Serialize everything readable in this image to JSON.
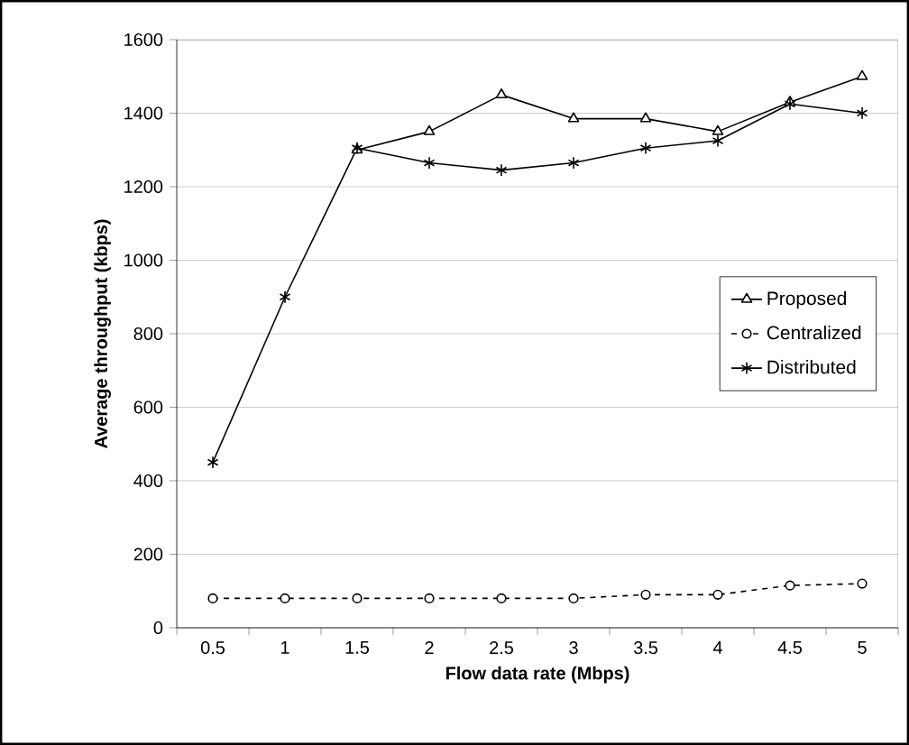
{
  "chart_data": {
    "type": "line",
    "xlabel": "Flow data rate (Mbps)",
    "ylabel": "Average throughput (kbps)",
    "categories": [
      "0.5",
      "1",
      "1.5",
      "2",
      "2.5",
      "3",
      "3.5",
      "4",
      "4.5",
      "5"
    ],
    "series": [
      {
        "name": "Proposed",
        "color": "#000000",
        "marker": "triangle",
        "line_style": "solid",
        "values": [
          null,
          null,
          1300,
          1350,
          1450,
          1385,
          1385,
          1350,
          1430,
          1500
        ]
      },
      {
        "name": "Centralized",
        "color": "#000000",
        "marker": "circle",
        "line_style": "dashed",
        "values": [
          80,
          80,
          80,
          80,
          80,
          80,
          90,
          90,
          115,
          120
        ]
      },
      {
        "name": "Distributed",
        "color": "#000000",
        "marker": "cross",
        "line_style": "solid",
        "values": [
          450,
          900,
          1305,
          1265,
          1245,
          1265,
          1305,
          1325,
          1425,
          1400
        ]
      }
    ],
    "ylim": [
      0,
      1600
    ],
    "yticks": [
      0,
      200,
      400,
      600,
      800,
      1000,
      1200,
      1400,
      1600
    ],
    "grid": "y",
    "legend": "right"
  }
}
